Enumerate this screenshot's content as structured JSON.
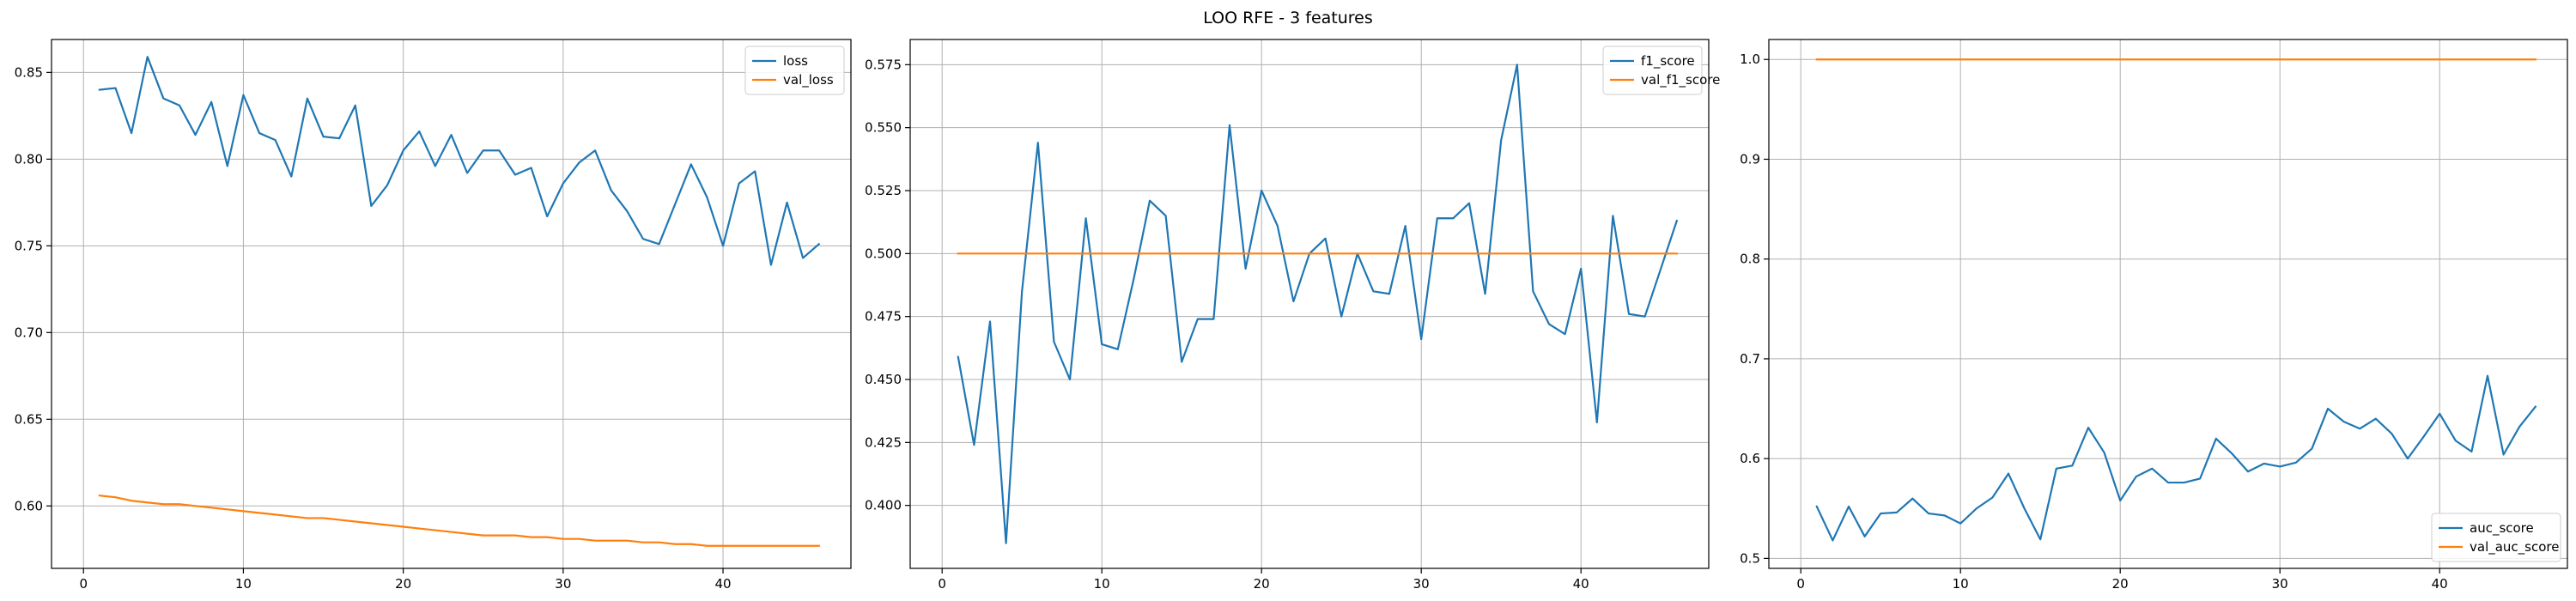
{
  "figure": {
    "title": "LOO RFE - 3 features"
  },
  "chart_data": [
    {
      "type": "line",
      "title": "",
      "xlabel": "",
      "ylabel": "",
      "xlim": [
        -2,
        48
      ],
      "ylim": [
        0.564,
        0.869
      ],
      "xticks": [
        0,
        10,
        20,
        30,
        40
      ],
      "yticks": [
        0.6,
        0.65,
        0.7,
        0.75,
        0.8,
        0.85
      ],
      "ytick_labels": [
        "0.60",
        "0.65",
        "0.70",
        "0.75",
        "0.80",
        "0.85"
      ],
      "grid": true,
      "legend_position": "top-right",
      "series": [
        {
          "name": "loss",
          "color": "#1f77b4",
          "x": [
            1,
            2,
            3,
            4,
            5,
            6,
            7,
            8,
            9,
            10,
            11,
            12,
            13,
            14,
            15,
            16,
            17,
            18,
            19,
            20,
            21,
            22,
            23,
            24,
            25,
            26,
            27,
            28,
            29,
            30,
            31,
            32,
            33,
            34,
            35,
            36,
            37,
            38,
            39,
            40,
            41,
            42,
            43,
            44,
            45,
            46
          ],
          "y": [
            0.84,
            0.841,
            0.815,
            0.859,
            0.835,
            0.831,
            0.814,
            0.833,
            0.796,
            0.837,
            0.815,
            0.811,
            0.79,
            0.835,
            0.813,
            0.812,
            0.831,
            0.773,
            0.785,
            0.805,
            0.816,
            0.796,
            0.814,
            0.792,
            0.805,
            0.805,
            0.791,
            0.795,
            0.767,
            0.786,
            0.798,
            0.805,
            0.782,
            0.77,
            0.754,
            0.751,
            0.774,
            0.797,
            0.778,
            0.75,
            0.786,
            0.793,
            0.739,
            0.775,
            0.743,
            0.751
          ]
        },
        {
          "name": "val_loss",
          "color": "#ff7f0e",
          "x": [
            1,
            2,
            3,
            4,
            5,
            6,
            7,
            8,
            9,
            10,
            11,
            12,
            13,
            14,
            15,
            16,
            17,
            18,
            19,
            20,
            21,
            22,
            23,
            24,
            25,
            26,
            27,
            28,
            29,
            30,
            31,
            32,
            33,
            34,
            35,
            36,
            37,
            38,
            39,
            40,
            41,
            42,
            43,
            44,
            45,
            46
          ],
          "y": [
            0.606,
            0.605,
            0.603,
            0.602,
            0.601,
            0.601,
            0.6,
            0.599,
            0.598,
            0.597,
            0.596,
            0.595,
            0.594,
            0.593,
            0.593,
            0.592,
            0.591,
            0.59,
            0.589,
            0.588,
            0.587,
            0.586,
            0.585,
            0.584,
            0.583,
            0.583,
            0.583,
            0.582,
            0.582,
            0.581,
            0.581,
            0.58,
            0.58,
            0.58,
            0.579,
            0.579,
            0.578,
            0.578,
            0.577,
            0.577,
            0.577,
            0.577,
            0.577,
            0.577,
            0.577,
            0.577
          ]
        }
      ]
    },
    {
      "type": "line",
      "title": "",
      "xlabel": "",
      "ylabel": "",
      "xlim": [
        -2,
        48
      ],
      "ylim": [
        0.375,
        0.585
      ],
      "xticks": [
        0,
        10,
        20,
        30,
        40
      ],
      "yticks": [
        0.4,
        0.425,
        0.45,
        0.475,
        0.5,
        0.525,
        0.55,
        0.575
      ],
      "ytick_labels": [
        "0.400",
        "0.425",
        "0.450",
        "0.475",
        "0.500",
        "0.525",
        "0.550",
        "0.575"
      ],
      "grid": true,
      "legend_position": "top-right",
      "series": [
        {
          "name": "f1_score",
          "color": "#1f77b4",
          "x": [
            1,
            2,
            3,
            4,
            5,
            6,
            7,
            8,
            9,
            10,
            11,
            12,
            13,
            14,
            15,
            16,
            17,
            18,
            19,
            20,
            21,
            22,
            23,
            24,
            25,
            26,
            27,
            28,
            29,
            30,
            31,
            32,
            33,
            34,
            35,
            36,
            37,
            38,
            39,
            40,
            41,
            42,
            43,
            44,
            45,
            46
          ],
          "y": [
            0.459,
            0.424,
            0.473,
            0.385,
            0.485,
            0.544,
            0.465,
            0.45,
            0.514,
            0.464,
            0.462,
            0.49,
            0.521,
            0.515,
            0.457,
            0.474,
            0.474,
            0.551,
            0.494,
            0.525,
            0.511,
            0.481,
            0.5,
            0.506,
            0.475,
            0.5,
            0.485,
            0.484,
            0.511,
            0.466,
            0.514,
            0.514,
            0.52,
            0.484,
            0.545,
            0.575,
            0.485,
            0.472,
            0.468,
            0.494,
            0.433,
            0.515,
            0.476,
            0.475,
            0.494,
            0.513
          ]
        },
        {
          "name": "val_f1_score",
          "color": "#ff7f0e",
          "x": [
            1,
            46
          ],
          "y": [
            0.5,
            0.5
          ]
        }
      ]
    },
    {
      "type": "line",
      "title": "",
      "xlabel": "",
      "ylabel": "",
      "xlim": [
        -2,
        48
      ],
      "ylim": [
        0.49,
        1.02
      ],
      "xticks": [
        0,
        10,
        20,
        30,
        40
      ],
      "yticks": [
        0.5,
        0.6,
        0.7,
        0.8,
        0.9,
        1.0
      ],
      "ytick_labels": [
        "0.5",
        "0.6",
        "0.7",
        "0.8",
        "0.9",
        "1.0"
      ],
      "grid": true,
      "legend_position": "bottom-right",
      "series": [
        {
          "name": "auc_score",
          "color": "#1f77b4",
          "x": [
            1,
            2,
            3,
            4,
            5,
            6,
            7,
            8,
            9,
            10,
            11,
            12,
            13,
            14,
            15,
            16,
            17,
            18,
            19,
            20,
            21,
            22,
            23,
            24,
            25,
            26,
            27,
            28,
            29,
            30,
            31,
            32,
            33,
            34,
            35,
            36,
            37,
            38,
            39,
            40,
            41,
            42,
            43,
            44,
            45,
            46
          ],
          "y": [
            0.552,
            0.518,
            0.552,
            0.522,
            0.545,
            0.546,
            0.56,
            0.545,
            0.543,
            0.535,
            0.55,
            0.561,
            0.585,
            0.55,
            0.519,
            0.59,
            0.593,
            0.631,
            0.606,
            0.558,
            0.582,
            0.59,
            0.576,
            0.576,
            0.58,
            0.62,
            0.605,
            0.587,
            0.595,
            0.592,
            0.596,
            0.61,
            0.65,
            0.637,
            0.63,
            0.64,
            0.625,
            0.6,
            0.622,
            0.645,
            0.618,
            0.607,
            0.683,
            0.604,
            0.632,
            0.652
          ]
        },
        {
          "name": "val_auc_score",
          "color": "#ff7f0e",
          "x": [
            1,
            46
          ],
          "y": [
            1.0,
            1.0
          ]
        }
      ]
    }
  ]
}
